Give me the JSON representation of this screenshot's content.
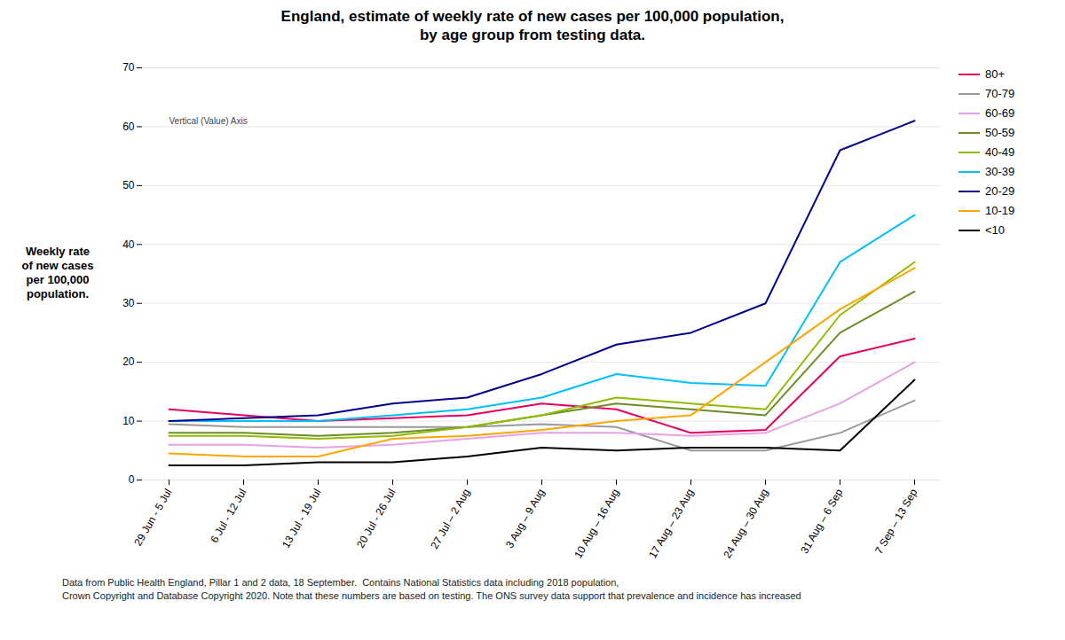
{
  "chart_data": {
    "type": "line",
    "title": "England, estimate of weekly rate of new cases per 100,000 population,\nby age group from testing data.",
    "ylabel": "Weekly rate\nof new cases\nper 100,000\npopulation.",
    "categories": [
      "29 Jun - 5 Jul",
      "6 Jul - 12 Jul",
      "13 Jul - 19 Jul",
      "20 Jul - 26 Jul",
      "27 Jul – 2 Aug",
      "3 Aug – 9 Aug",
      "10 Aug – 16 Aug",
      "17 Aug – 23 Aug",
      "24 Aug – 30 Aug",
      "31 Aug – 6 Sep",
      "7 Sep – 13 Sep"
    ],
    "series": [
      {
        "name": "80+",
        "color": "#e8005c",
        "values": [
          12,
          11,
          10,
          10.5,
          11,
          13,
          12,
          8,
          8.5,
          21,
          24
        ]
      },
      {
        "name": "70-79",
        "color": "#999999",
        "values": [
          9.5,
          9,
          9,
          9,
          9,
          9.5,
          9,
          5,
          5,
          8,
          13.5
        ]
      },
      {
        "name": "60-69",
        "color": "#e8a0e8",
        "values": [
          6,
          6,
          5.5,
          6,
          7,
          8,
          8,
          7.5,
          8,
          13,
          20
        ]
      },
      {
        "name": "50-59",
        "color": "#6b8e23",
        "values": [
          8,
          8,
          7.5,
          8,
          9,
          11,
          13,
          12,
          11,
          25,
          32
        ]
      },
      {
        "name": "40-49",
        "color": "#8fbc00",
        "values": [
          7.5,
          7.5,
          7,
          7.5,
          9,
          11,
          14,
          13,
          12,
          28,
          37
        ]
      },
      {
        "name": "30-39",
        "color": "#00bfff",
        "values": [
          10,
          10,
          10,
          11,
          12,
          14,
          18,
          16.5,
          16,
          37,
          45
        ]
      },
      {
        "name": "20-29",
        "color": "#00008b",
        "values": [
          10,
          10.5,
          11,
          13,
          14,
          18,
          23,
          25,
          30,
          56,
          61
        ]
      },
      {
        "name": "10-19",
        "color": "#ffa500",
        "values": [
          4.5,
          4,
          4,
          7,
          7.5,
          8.5,
          10,
          11,
          20,
          29,
          36
        ]
      },
      {
        "name": "<10",
        "color": "#000000",
        "values": [
          2.5,
          2.5,
          3,
          3,
          4,
          5.5,
          5,
          5.5,
          5.5,
          5,
          17
        ]
      }
    ],
    "ylim": [
      0,
      70
    ],
    "yticks": [
      0,
      10,
      20,
      30,
      40,
      50,
      60,
      70
    ],
    "grid": true,
    "legend": "right",
    "annotations": [
      {
        "text": "Vertical (Value) Axis",
        "y": 60
      }
    ],
    "caption": [
      "Data from Public Health England, Pillar 1 and 2 data, 18 September.  Contains National Statistics data including 2018 population,",
      "Crown Copyright and Database Copyright 2020. Note that these numbers are based on testing. The ONS survey data support that prevalence and incidence has increased"
    ]
  }
}
